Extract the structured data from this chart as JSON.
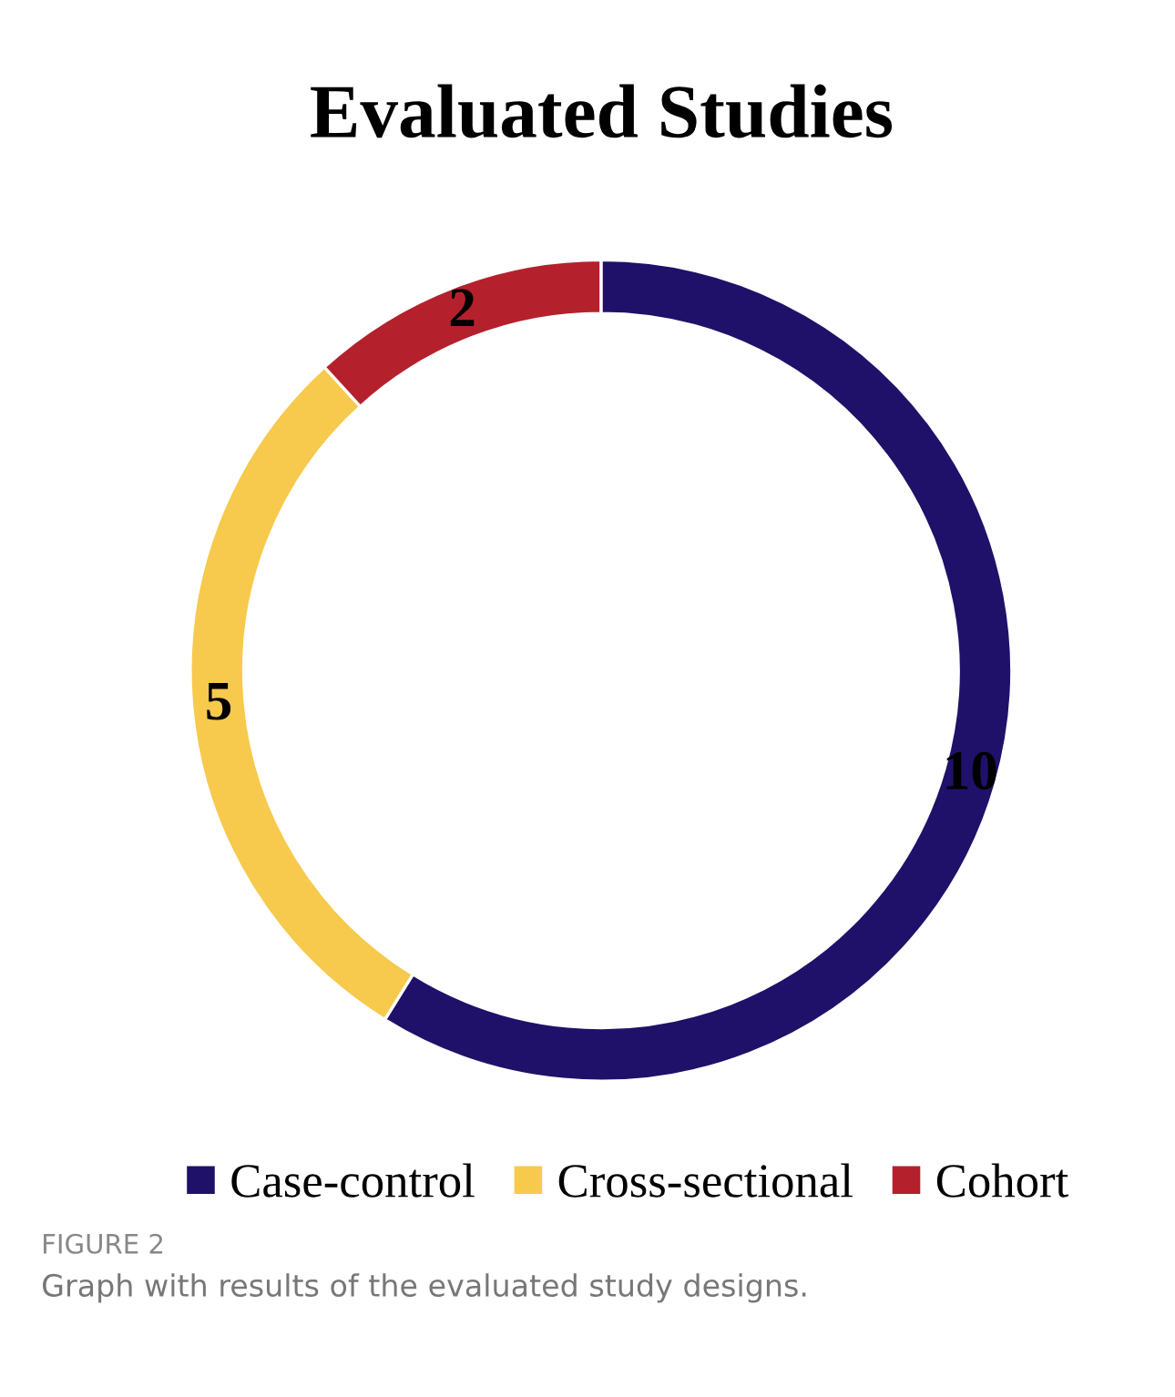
{
  "chart_data": {
    "type": "donut",
    "title": "Evaluated Studies",
    "categories": [
      "Case-control",
      "Cross-sectional",
      "Cohort"
    ],
    "values": [
      10,
      5,
      2
    ],
    "colors": [
      "#1f1169",
      "#f7c94d",
      "#b5202d"
    ],
    "data_labels": true,
    "legend": "bottom",
    "annotations": [
      "FIGURE 2",
      "Graph with results of the evaluated study designs."
    ]
  }
}
